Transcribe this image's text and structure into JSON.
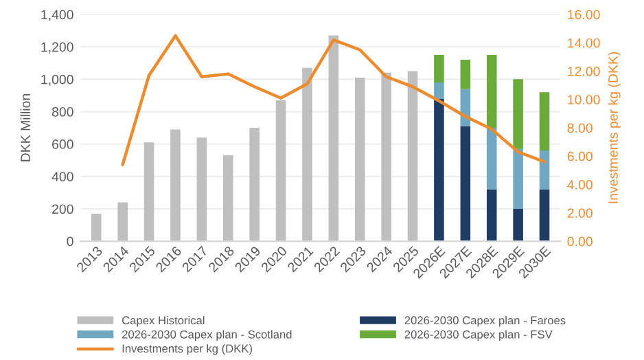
{
  "chart_data": {
    "type": "bar",
    "stacked": true,
    "ylabel": "DKK Million",
    "y2label": "Investments per kg (DKK)",
    "categories": [
      "2013",
      "2014",
      "2015",
      "2016",
      "2017",
      "2018",
      "2019",
      "2020",
      "2021",
      "2022",
      "2023",
      "2024",
      "2025",
      "2026E",
      "2027E",
      "2028E",
      "2029E",
      "2030E"
    ],
    "series": [
      {
        "name": "Capex Historical",
        "color": "#bfbfbf",
        "values": [
          170,
          240,
          610,
          690,
          640,
          530,
          700,
          870,
          1070,
          1270,
          1010,
          1040,
          1050,
          null,
          null,
          null,
          null,
          null
        ]
      },
      {
        "name": "2026-2030 Capex plan - Faroes",
        "color": "#1f3d63",
        "values": [
          null,
          null,
          null,
          null,
          null,
          null,
          null,
          null,
          null,
          null,
          null,
          null,
          null,
          880,
          710,
          320,
          200,
          320
        ]
      },
      {
        "name": "2026-2030 Capex plan - Scotland",
        "color": "#6fa8c0",
        "values": [
          null,
          null,
          null,
          null,
          null,
          null,
          null,
          null,
          null,
          null,
          null,
          null,
          null,
          100,
          230,
          380,
          370,
          240
        ]
      },
      {
        "name": "2026-2030 Capex plan - FSV",
        "color": "#6aaa3a",
        "values": [
          null,
          null,
          null,
          null,
          null,
          null,
          null,
          null,
          null,
          null,
          null,
          null,
          null,
          170,
          180,
          450,
          430,
          360
        ]
      },
      {
        "name": "Investments per kg (DKK)",
        "type": "line",
        "axis": "y2",
        "color": "#ed8b2f",
        "values": [
          null,
          5.4,
          11.7,
          14.5,
          11.6,
          11.8,
          10.9,
          10.1,
          11.1,
          14.2,
          13.5,
          11.6,
          10.9,
          9.9,
          8.8,
          7.9,
          6.3,
          5.6
        ]
      }
    ],
    "ylim": [
      0,
      1400
    ],
    "yticks": [
      0,
      200,
      400,
      600,
      800,
      {
        "value": 1000,
        "label": "1,000"
      },
      {
        "value": 1200,
        "label": "1,200"
      },
      {
        "value": 1400,
        "label": "1,400"
      }
    ],
    "y2lim": [
      0,
      16
    ],
    "y2ticks": [
      {
        "value": 0,
        "label": "0.00"
      },
      {
        "value": 2,
        "label": "2.00"
      },
      {
        "value": 4,
        "label": "4.00"
      },
      {
        "value": 6,
        "label": "6.00"
      },
      {
        "value": 8,
        "label": "8.00"
      },
      {
        "value": 10,
        "label": "10.00"
      },
      {
        "value": 12,
        "label": "12.00"
      },
      {
        "value": 14,
        "label": "14.00"
      },
      {
        "value": 16,
        "label": "16.00"
      }
    ],
    "grid": "y",
    "legend": "bottom",
    "marker": "none",
    "line_style": "solid"
  }
}
